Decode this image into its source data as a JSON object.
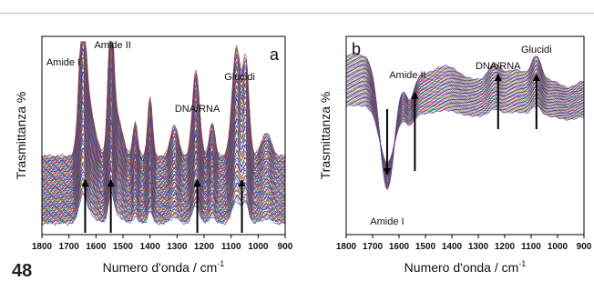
{
  "page_number": "48",
  "colors": {
    "axis": "#000000",
    "arrow": "#000000",
    "series_palette": [
      "#1f3fb0",
      "#d81b60",
      "#00a693",
      "#7b1fa2",
      "#2e7d32",
      "#c62828",
      "#0277bd",
      "#ef6c00",
      "#6d4c41",
      "#00838f",
      "#ad1457",
      "#5e35b1"
    ]
  },
  "chart_data": [
    {
      "type": "line",
      "panel_label": "a",
      "xlabel": "Numero d'onda / cm",
      "xlabel_sup": "-1",
      "ylabel": "Trasmittanza %",
      "xlim": [
        1800,
        900
      ],
      "x_reversed": true,
      "x_ticks": [
        1800,
        1700,
        1600,
        1500,
        1400,
        1300,
        1200,
        1100,
        1000,
        900
      ],
      "y_ticks_shown": false,
      "series_count": 90,
      "peaks": [
        {
          "label": "Amide I",
          "x": 1640
        },
        {
          "label": "Amide II",
          "x": 1545
        },
        {
          "label": "DNA/RNA",
          "x": 1225
        },
        {
          "label": "Glucidi",
          "x": 1075
        }
      ],
      "arrows": [
        {
          "x": 1640,
          "direction": "up"
        },
        {
          "x": 1545,
          "direction": "up"
        },
        {
          "x": 1225,
          "direction": "up"
        },
        {
          "x": 1060,
          "direction": "up"
        }
      ]
    },
    {
      "type": "line",
      "panel_label": "b",
      "xlabel": "Numero d'onda / cm",
      "xlabel_sup": "-1",
      "ylabel": "Trasmittanza %",
      "xlim": [
        1800,
        900
      ],
      "x_reversed": true,
      "x_ticks": [
        1800,
        1700,
        1600,
        1500,
        1400,
        1300,
        1200,
        1100,
        1000,
        900
      ],
      "y_ticks_shown": false,
      "series_count": 60,
      "peaks": [
        {
          "label": "Amide I",
          "x": 1645
        },
        {
          "label": "Amide II",
          "x": 1540
        },
        {
          "label": "DNA/RNA",
          "x": 1225
        },
        {
          "label": "Glucidi",
          "x": 1080
        }
      ],
      "arrows": [
        {
          "x": 1645,
          "direction": "down"
        },
        {
          "x": 1540,
          "direction": "up"
        },
        {
          "x": 1225,
          "direction": "up"
        },
        {
          "x": 1080,
          "direction": "up"
        }
      ]
    }
  ]
}
